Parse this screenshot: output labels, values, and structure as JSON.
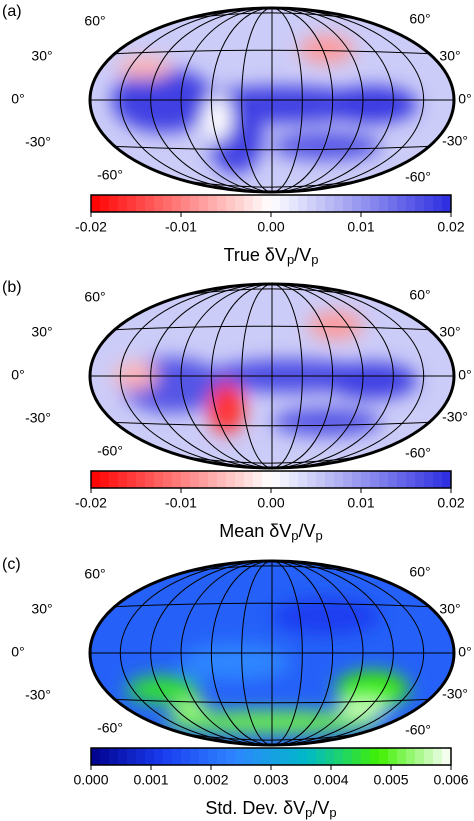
{
  "panels": [
    {
      "label": "(a)",
      "lat_labels_left": [
        "60°",
        "30°",
        "0°",
        "-30°",
        "-60°"
      ],
      "lat_labels_right": [
        "60°",
        "30°",
        "0°",
        "-30°",
        "-60°"
      ],
      "colorbar": {
        "clim": [
          -0.02,
          0.02
        ],
        "ticks": [
          -0.02,
          -0.01,
          {
            "value": 0,
            "label": "0.00"
          },
          0.01,
          0.02
        ],
        "colors": [
          "#ff0000",
          "#ffffff",
          "#2b2be0"
        ],
        "label": [
          "True δV",
          "p",
          "/V",
          "p"
        ]
      }
    },
    {
      "label": "(b)",
      "lat_labels_left": [
        "60°",
        "30°",
        "0°",
        "-30°",
        "-60°"
      ],
      "lat_labels_right": [
        "60°",
        "30°",
        "0°",
        "-30°",
        "-60°"
      ],
      "colorbar": {
        "clim": [
          -0.02,
          0.02
        ],
        "ticks": [
          -0.02,
          -0.01,
          {
            "value": 0,
            "label": "0.00"
          },
          0.01,
          0.02
        ],
        "colors": [
          "#ff0000",
          "#ffffff",
          "#2b2be0"
        ],
        "label": [
          "Mean δV",
          "p",
          "/V",
          "p"
        ]
      }
    },
    {
      "label": "(c)",
      "lat_labels_left": [
        "60°",
        "30°",
        "0°",
        "-30°",
        "-60°"
      ],
      "lat_labels_right": [
        "60°",
        "30°",
        "0°",
        "-30°",
        "-60°"
      ],
      "colorbar": {
        "clim": [
          0,
          0.006
        ],
        "ticks": [
          {
            "value": 0,
            "label": "0.000"
          },
          0.001,
          0.002,
          0.003,
          0.004,
          0.005,
          0.006
        ],
        "colors": [
          "#00008c",
          "#1a3cf0",
          "#2f86ff",
          "#00b8c8",
          "#40f000",
          "#ffffff"
        ],
        "label": [
          "Std. Dev. δV",
          "p",
          "/V",
          "p"
        ]
      }
    }
  ]
}
